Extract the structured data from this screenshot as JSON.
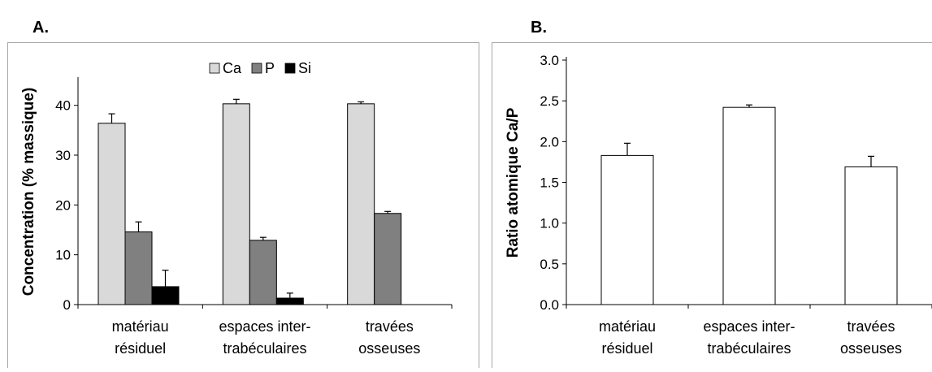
{
  "panel_labels": {
    "a": "A.",
    "b": "B."
  },
  "chart_data": [
    {
      "type": "bar",
      "categories": [
        [
          "matériau",
          "résiduel"
        ],
        [
          "espaces inter-",
          "trabéculaires"
        ],
        [
          "travées",
          "osseuses"
        ]
      ],
      "series": [
        {
          "name": "Ca",
          "values": [
            36.4,
            40.3,
            40.3
          ],
          "errors": [
            1.9,
            0.9,
            0.4
          ],
          "color": "#d9d9d9"
        },
        {
          "name": "P",
          "values": [
            14.6,
            12.9,
            18.3
          ],
          "errors": [
            2.0,
            0.6,
            0.4
          ],
          "color": "#808080"
        },
        {
          "name": "Si",
          "values": [
            3.6,
            1.3,
            0
          ],
          "errors": [
            3.3,
            1.0,
            0
          ],
          "color": "#000000"
        }
      ],
      "ylabel": "Concentration (% massique)",
      "ylim": [
        0,
        45
      ],
      "yticks": [
        "0",
        "10",
        "20",
        "30",
        "40"
      ],
      "legend": "top"
    },
    {
      "type": "bar",
      "categories": [
        [
          "matériau",
          "résiduel"
        ],
        [
          "espaces inter-",
          "trabéculaires"
        ],
        [
          "travées",
          "osseuses"
        ]
      ],
      "series": [
        {
          "values": [
            1.83,
            2.42,
            1.69
          ],
          "errors": [
            0.15,
            0.03,
            0.13
          ],
          "color": "#ffffff"
        }
      ],
      "ylabel": "Ratio atomique Ca/P",
      "ylim": [
        0,
        3.0
      ],
      "yticks": [
        "0.0",
        "0.5",
        "1.0",
        "1.5",
        "2.0",
        "2.5",
        "3.0"
      ]
    }
  ]
}
